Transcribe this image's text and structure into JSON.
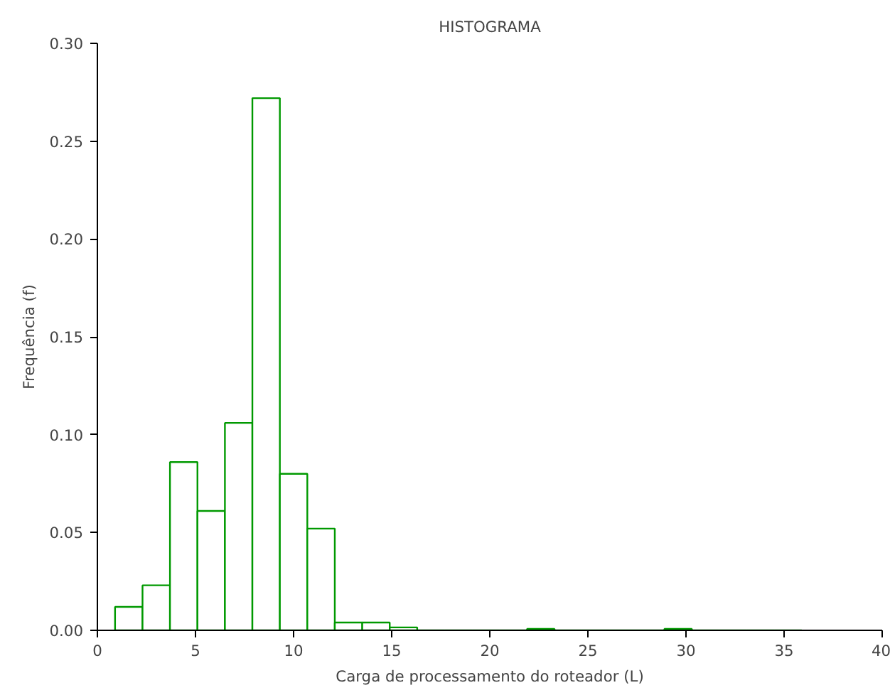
{
  "chart_data": {
    "type": "histogram",
    "title": "HISTOGRAMA",
    "xlabel": "Carga de processamento do roteador (L)",
    "ylabel": "Frequência (f)",
    "bins": [
      0.9,
      2.3,
      3.7,
      5.1,
      6.5,
      7.9,
      9.3,
      10.7,
      12.1,
      13.5,
      14.9,
      16.3,
      17.7,
      19.1,
      20.5,
      21.9,
      23.3,
      24.7,
      26.1,
      27.5,
      28.9,
      30.3,
      31.7,
      33.1,
      34.5,
      35.9
    ],
    "values": [
      0.012,
      0.023,
      0.086,
      0.061,
      0.106,
      0.272,
      0.08,
      0.052,
      0.004,
      0.004,
      0.0015,
      0,
      0,
      0,
      0,
      0.0007,
      0,
      0,
      0,
      0,
      0.0007,
      0,
      0,
      0,
      0
    ],
    "color": "#009900",
    "xlim": [
      0,
      40
    ],
    "xticks": [
      0,
      5,
      10,
      15,
      20,
      25,
      30,
      35,
      40
    ],
    "ylim": [
      0,
      0.3
    ],
    "yticks": [
      {
        "value": 0,
        "label": "0.00"
      },
      {
        "value": 0.05,
        "label": "0.05"
      },
      {
        "value": 0.1,
        "label": "0.10"
      },
      {
        "value": 0.15,
        "label": "0.15"
      },
      {
        "value": 0.2,
        "label": "0.20"
      },
      {
        "value": 0.25,
        "label": "0.25"
      },
      {
        "value": 0.3,
        "label": "0.30"
      }
    ],
    "grid": false
  }
}
